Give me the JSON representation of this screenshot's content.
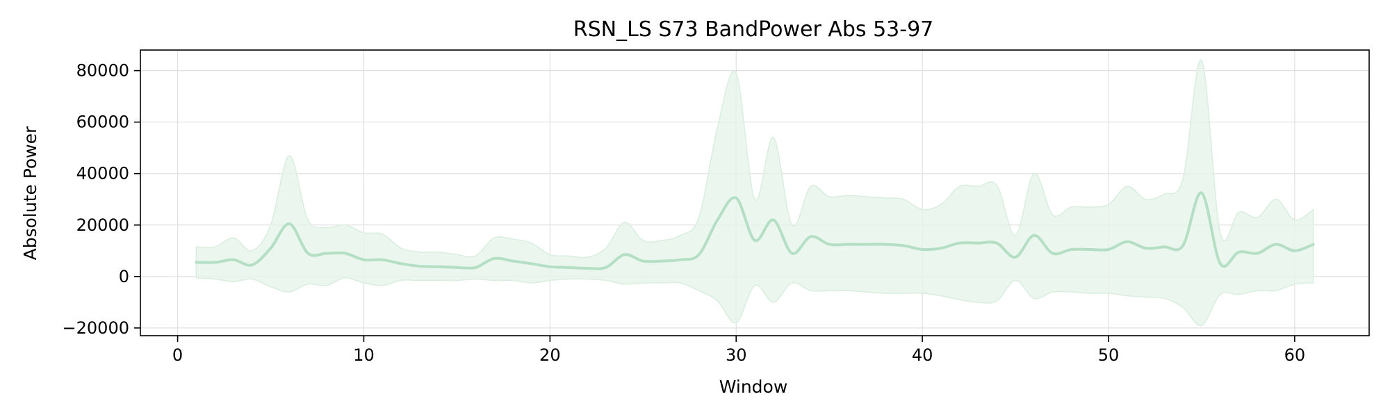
{
  "chart_data": {
    "type": "area",
    "title": "RSN_LS S73 BandPower Abs 53-97",
    "xlabel": "Window",
    "ylabel": "Absolute Power",
    "xlim": [
      -2,
      64
    ],
    "ylim": [
      -23000,
      88000
    ],
    "xticks": [
      0,
      10,
      20,
      30,
      40,
      50,
      60
    ],
    "yticks": [
      -20000,
      0,
      20000,
      40000,
      60000,
      80000
    ],
    "ytick_labels": [
      "−20000",
      "0",
      "20000",
      "40000",
      "60000",
      "80000"
    ],
    "grid": true,
    "colors": {
      "line": "#b5dfc5",
      "band": "#e6f4ea",
      "band_edge": "#d9eedf"
    },
    "series": [
      {
        "x": [
          1,
          2,
          3,
          4,
          5,
          6,
          7,
          8,
          9,
          10,
          11,
          12,
          13,
          14,
          15,
          16,
          17,
          18,
          19,
          20,
          21,
          22,
          23,
          24,
          25,
          26,
          27,
          28,
          29,
          30,
          31,
          32,
          33,
          34,
          35,
          36,
          37,
          38,
          39,
          40,
          41,
          42,
          43,
          44,
          45,
          46,
          47,
          48,
          49,
          50,
          51,
          52,
          53,
          54,
          55,
          56,
          57,
          58,
          59,
          60,
          61
        ],
        "mean": [
          5500,
          5500,
          6500,
          4500,
          11000,
          20500,
          9000,
          9000,
          9000,
          6500,
          6500,
          5000,
          4000,
          3800,
          3500,
          3500,
          7000,
          6000,
          5000,
          3800,
          3500,
          3200,
          3500,
          8500,
          6000,
          6000,
          6500,
          8500,
          22000,
          30500,
          14000,
          22000,
          9000,
          15500,
          12500,
          12500,
          12500,
          12500,
          12000,
          10500,
          11000,
          13000,
          13000,
          13000,
          7500,
          16000,
          9000,
          10500,
          10500,
          10500,
          13500,
          11000,
          11500,
          12000,
          32500,
          5000,
          9500,
          9000,
          12500,
          10000,
          12500
        ],
        "upper": [
          11500,
          11500,
          15000,
          10000,
          20000,
          47000,
          22000,
          19000,
          20000,
          17000,
          16500,
          11000,
          9500,
          9500,
          8500,
          8000,
          15000,
          14500,
          13000,
          8500,
          8000,
          7500,
          11000,
          21000,
          14000,
          14000,
          16000,
          23000,
          58000,
          79000,
          30000,
          54000,
          20000,
          35000,
          31000,
          31500,
          31000,
          30500,
          30000,
          26000,
          28000,
          35000,
          35000,
          35500,
          16000,
          40000,
          24000,
          27000,
          27000,
          28000,
          35000,
          30000,
          32000,
          38000,
          84000,
          17000,
          25000,
          23000,
          30000,
          22000,
          26000
        ],
        "lower": [
          -500,
          -1000,
          -2000,
          -1000,
          -4000,
          -6000,
          -3000,
          -3500,
          -500,
          -2500,
          -3500,
          -1500,
          -1500,
          -1500,
          -1500,
          -1000,
          -1500,
          -1500,
          -2500,
          -1500,
          -1000,
          -1000,
          -1500,
          -3000,
          -2500,
          -2500,
          -2500,
          -5500,
          -9500,
          -18000,
          -3500,
          -10000,
          -2500,
          -5500,
          -5500,
          -5500,
          -6000,
          -6500,
          -6500,
          -6500,
          -7500,
          -9000,
          -10000,
          -9500,
          -1500,
          -8500,
          -6000,
          -6000,
          -6500,
          -6500,
          -7500,
          -8000,
          -8500,
          -12000,
          -19000,
          -7000,
          -7000,
          -5500,
          -5500,
          -3000,
          -2500
        ]
      }
    ]
  }
}
